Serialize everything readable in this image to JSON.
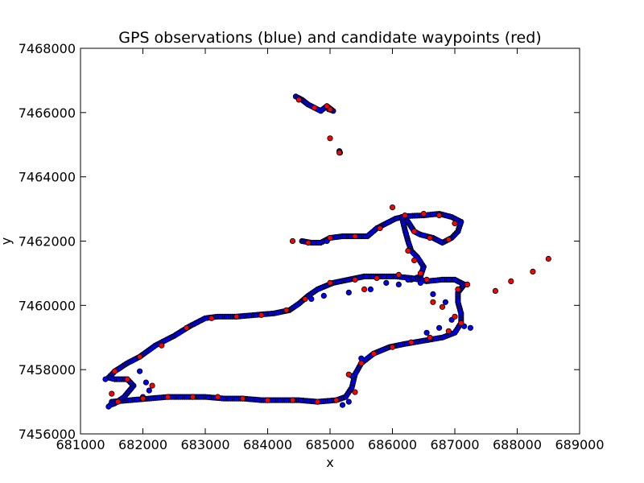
{
  "chart_data": {
    "type": "scatter",
    "title": "GPS observations (blue) and candidate waypoints (red)",
    "xlabel": "x",
    "ylabel": "y",
    "xlim": [
      681000,
      689000
    ],
    "ylim": [
      7456000,
      7468000
    ],
    "xticks": [
      "681000",
      "682000",
      "683000",
      "684000",
      "685000",
      "686000",
      "687000",
      "688000",
      "689000"
    ],
    "yticks": [
      "7456000",
      "7458000",
      "7460000",
      "7462000",
      "7464000",
      "7466000",
      "7468000"
    ],
    "grid": false,
    "series": [
      {
        "color": "#0000ff",
        "polylines": [
          [
            [
              684450,
              7466500
            ],
            [
              684550,
              7466400
            ],
            [
              684650,
              7466250
            ],
            [
              684750,
              7466150
            ],
            [
              684850,
              7466050
            ],
            [
              684950,
              7466200
            ],
            [
              685050,
              7466050
            ],
            [
              684980,
              7466100
            ]
          ],
          [
            [
              685150,
              7464800
            ],
            [
              685160,
              7464750
            ]
          ],
          [
            [
              684550,
              7462000
            ],
            [
              684700,
              7461950
            ],
            [
              684850,
              7461950
            ],
            [
              685000,
              7462100
            ],
            [
              685200,
              7462150
            ],
            [
              685400,
              7462150
            ],
            [
              685600,
              7462150
            ],
            [
              685750,
              7462400
            ],
            [
              685900,
              7462550
            ],
            [
              686050,
              7462700
            ],
            [
              686250,
              7462780
            ],
            [
              686500,
              7462800
            ],
            [
              686750,
              7462850
            ],
            [
              686950,
              7462750
            ],
            [
              687100,
              7462600
            ],
            [
              687050,
              7462300
            ],
            [
              686950,
              7462100
            ],
            [
              686800,
              7461950
            ],
            [
              686650,
              7462100
            ],
            [
              686450,
              7462200
            ],
            [
              686350,
              7462300
            ],
            [
              686250,
              7462600
            ],
            [
              686150,
              7462750
            ]
          ],
          [
            [
              686150,
              7462750
            ],
            [
              686200,
              7462350
            ],
            [
              686250,
              7462000
            ],
            [
              686300,
              7461700
            ],
            [
              686400,
              7461500
            ],
            [
              686500,
              7461200
            ],
            [
              686450,
              7460900
            ],
            [
              686300,
              7460800
            ]
          ],
          [
            [
              681500,
              7457000
            ],
            [
              681800,
              7457050
            ],
            [
              682100,
              7457100
            ],
            [
              682400,
              7457150
            ],
            [
              682700,
              7457150
            ],
            [
              683000,
              7457150
            ],
            [
              683300,
              7457100
            ],
            [
              683600,
              7457100
            ],
            [
              683900,
              7457050
            ],
            [
              684200,
              7457050
            ],
            [
              684500,
              7457050
            ],
            [
              684800,
              7457000
            ],
            [
              685100,
              7457050
            ],
            [
              685250,
              7457150
            ],
            [
              685350,
              7457450
            ],
            [
              685400,
              7457850
            ],
            [
              685500,
              7458200
            ],
            [
              685700,
              7458500
            ],
            [
              685950,
              7458700
            ],
            [
              686200,
              7458800
            ],
            [
              686500,
              7458900
            ],
            [
              686800,
              7459000
            ],
            [
              687000,
              7459150
            ],
            [
              687100,
              7459450
            ],
            [
              687100,
              7459750
            ],
            [
              687050,
              7460100
            ],
            [
              687050,
              7460400
            ],
            [
              687150,
              7460650
            ],
            [
              687000,
              7460800
            ],
            [
              686800,
              7460800
            ],
            [
              686550,
              7460750
            ],
            [
              686300,
              7460850
            ],
            [
              686050,
              7460900
            ],
            [
              685800,
              7460900
            ],
            [
              685550,
              7460900
            ],
            [
              685300,
              7460800
            ],
            [
              685050,
              7460700
            ],
            [
              684800,
              7460500
            ],
            [
              684650,
              7460300
            ],
            [
              684500,
              7460050
            ],
            [
              684350,
              7459850
            ],
            [
              684100,
              7459750
            ],
            [
              683800,
              7459700
            ],
            [
              683500,
              7459650
            ],
            [
              683200,
              7459650
            ],
            [
              683000,
              7459600
            ],
            [
              682750,
              7459350
            ],
            [
              682500,
              7459050
            ],
            [
              682200,
              7458750
            ],
            [
              681950,
              7458400
            ],
            [
              681750,
              7458200
            ],
            [
              681550,
              7457950
            ],
            [
              681450,
              7457750
            ],
            [
              681550,
              7457700
            ],
            [
              681750,
              7457700
            ],
            [
              681850,
              7457500
            ],
            [
              681700,
              7457150
            ],
            [
              681550,
              7456950
            ],
            [
              681480,
              7456900
            ]
          ]
        ],
        "points": [
          [
            685300,
            7460400
          ],
          [
            685650,
            7460500
          ],
          [
            685900,
            7460700
          ],
          [
            686100,
            7460650
          ],
          [
            686250,
            7460800
          ],
          [
            686450,
            7460700
          ],
          [
            686650,
            7460350
          ],
          [
            686850,
            7460100
          ],
          [
            686550,
            7459150
          ],
          [
            686750,
            7459300
          ],
          [
            686950,
            7459550
          ],
          [
            687150,
            7459350
          ],
          [
            687250,
            7459300
          ],
          [
            684700,
            7460200
          ],
          [
            684900,
            7460300
          ],
          [
            685350,
            7457800
          ],
          [
            685500,
            7458350
          ],
          [
            685300,
            7457000
          ],
          [
            685200,
            7456900
          ],
          [
            681950,
            7457950
          ],
          [
            682050,
            7457600
          ],
          [
            682100,
            7457350
          ],
          [
            682000,
            7457150
          ],
          [
            681450,
            7456850
          ],
          [
            681400,
            7457700
          ],
          [
            684950,
            7462000
          ]
        ]
      },
      {
        "color": "#ff0000",
        "points": [
          [
            684500,
            7466400
          ],
          [
            684750,
            7466150
          ],
          [
            685000,
            7466100
          ],
          [
            684950,
            7466200
          ],
          [
            685000,
            7465200
          ],
          [
            685150,
            7464750
          ],
          [
            684400,
            7462000
          ],
          [
            684650,
            7461950
          ],
          [
            685000,
            7462100
          ],
          [
            685400,
            7462150
          ],
          [
            685800,
            7462400
          ],
          [
            686000,
            7463050
          ],
          [
            686200,
            7462800
          ],
          [
            686500,
            7462850
          ],
          [
            686750,
            7462800
          ],
          [
            687000,
            7462550
          ],
          [
            686900,
            7462050
          ],
          [
            686600,
            7462100
          ],
          [
            686350,
            7462300
          ],
          [
            686250,
            7461700
          ],
          [
            686350,
            7461400
          ],
          [
            686450,
            7461000
          ],
          [
            685550,
            7460500
          ],
          [
            685750,
            7460850
          ],
          [
            686100,
            7460950
          ],
          [
            686550,
            7460800
          ],
          [
            686650,
            7460100
          ],
          [
            686800,
            7459950
          ],
          [
            687000,
            7459650
          ],
          [
            687050,
            7460500
          ],
          [
            687200,
            7460650
          ],
          [
            687100,
            7459450
          ],
          [
            686900,
            7459200
          ],
          [
            686600,
            7459000
          ],
          [
            686300,
            7458850
          ],
          [
            686000,
            7458700
          ],
          [
            685700,
            7458500
          ],
          [
            685500,
            7458200
          ],
          [
            685300,
            7457850
          ],
          [
            685400,
            7457300
          ],
          [
            685100,
            7457050
          ],
          [
            684800,
            7457000
          ],
          [
            684400,
            7457050
          ],
          [
            684000,
            7457050
          ],
          [
            683600,
            7457100
          ],
          [
            683200,
            7457150
          ],
          [
            682800,
            7457150
          ],
          [
            682400,
            7457150
          ],
          [
            682000,
            7457100
          ],
          [
            681600,
            7457000
          ],
          [
            681500,
            7457250
          ],
          [
            681750,
            7457700
          ],
          [
            682150,
            7457500
          ],
          [
            681550,
            7457950
          ],
          [
            681950,
            7458400
          ],
          [
            682300,
            7458750
          ],
          [
            682700,
            7459300
          ],
          [
            683100,
            7459600
          ],
          [
            683500,
            7459650
          ],
          [
            683900,
            7459700
          ],
          [
            684300,
            7459850
          ],
          [
            684600,
            7460200
          ],
          [
            685000,
            7460700
          ],
          [
            685400,
            7460800
          ],
          [
            687650,
            7460450
          ],
          [
            687900,
            7460750
          ],
          [
            688250,
            7461050
          ],
          [
            688500,
            7461450
          ]
        ]
      }
    ]
  }
}
